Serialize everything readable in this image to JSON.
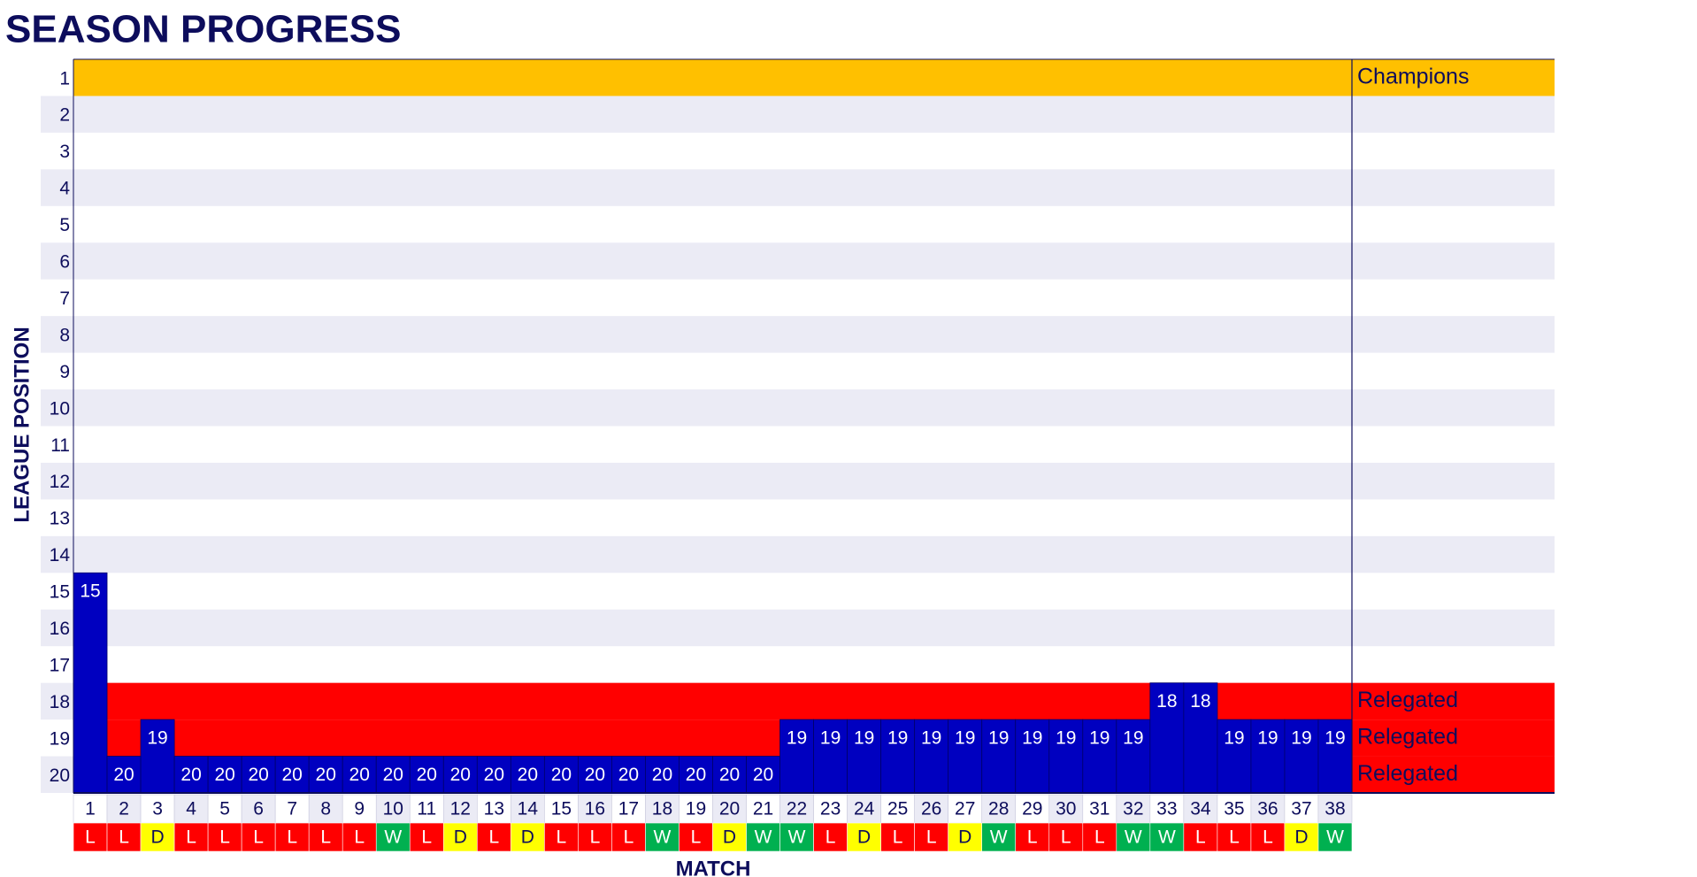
{
  "chart_data": {
    "type": "bar",
    "title": "SEASON PROGRESS",
    "y_label": "LEAGUE POSITION",
    "x_label": "MATCH",
    "categories": [
      1,
      2,
      3,
      4,
      5,
      6,
      7,
      8,
      9,
      10,
      11,
      12,
      13,
      14,
      15,
      16,
      17,
      18,
      19,
      20,
      21,
      22,
      23,
      24,
      25,
      26,
      27,
      28,
      29,
      30,
      31,
      32,
      33,
      34,
      35,
      36,
      37,
      38
    ],
    "values": [
      15,
      20,
      19,
      20,
      20,
      20,
      20,
      20,
      20,
      20,
      20,
      20,
      20,
      20,
      20,
      20,
      20,
      20,
      20,
      20,
      20,
      19,
      19,
      19,
      19,
      19,
      19,
      19,
      19,
      19,
      19,
      19,
      18,
      18,
      19,
      19,
      19,
      19
    ],
    "results": [
      "L",
      "L",
      "D",
      "L",
      "L",
      "L",
      "L",
      "L",
      "L",
      "W",
      "L",
      "D",
      "L",
      "D",
      "L",
      "L",
      "L",
      "W",
      "L",
      "D",
      "W",
      "W",
      "L",
      "D",
      "L",
      "L",
      "D",
      "W",
      "L",
      "L",
      "L",
      "W",
      "W",
      "L",
      "L",
      "L",
      "D",
      "W"
    ],
    "result_colors": {
      "W": "#00b050",
      "L": "#ff0000",
      "D": "#ffff00"
    },
    "color": "#0000c0",
    "ylim": [
      20.5,
      0.5
    ],
    "yticks": [
      1,
      2,
      3,
      4,
      5,
      6,
      7,
      8,
      9,
      10,
      11,
      12,
      13,
      14,
      15,
      16,
      17,
      18,
      19,
      20
    ],
    "zones": [
      {
        "name": "Champions",
        "rows": [
          1
        ],
        "color": "#ffc000"
      },
      {
        "name": "Relegated",
        "rows": [
          18,
          19,
          20
        ],
        "color": "#ff0000"
      }
    ]
  }
}
